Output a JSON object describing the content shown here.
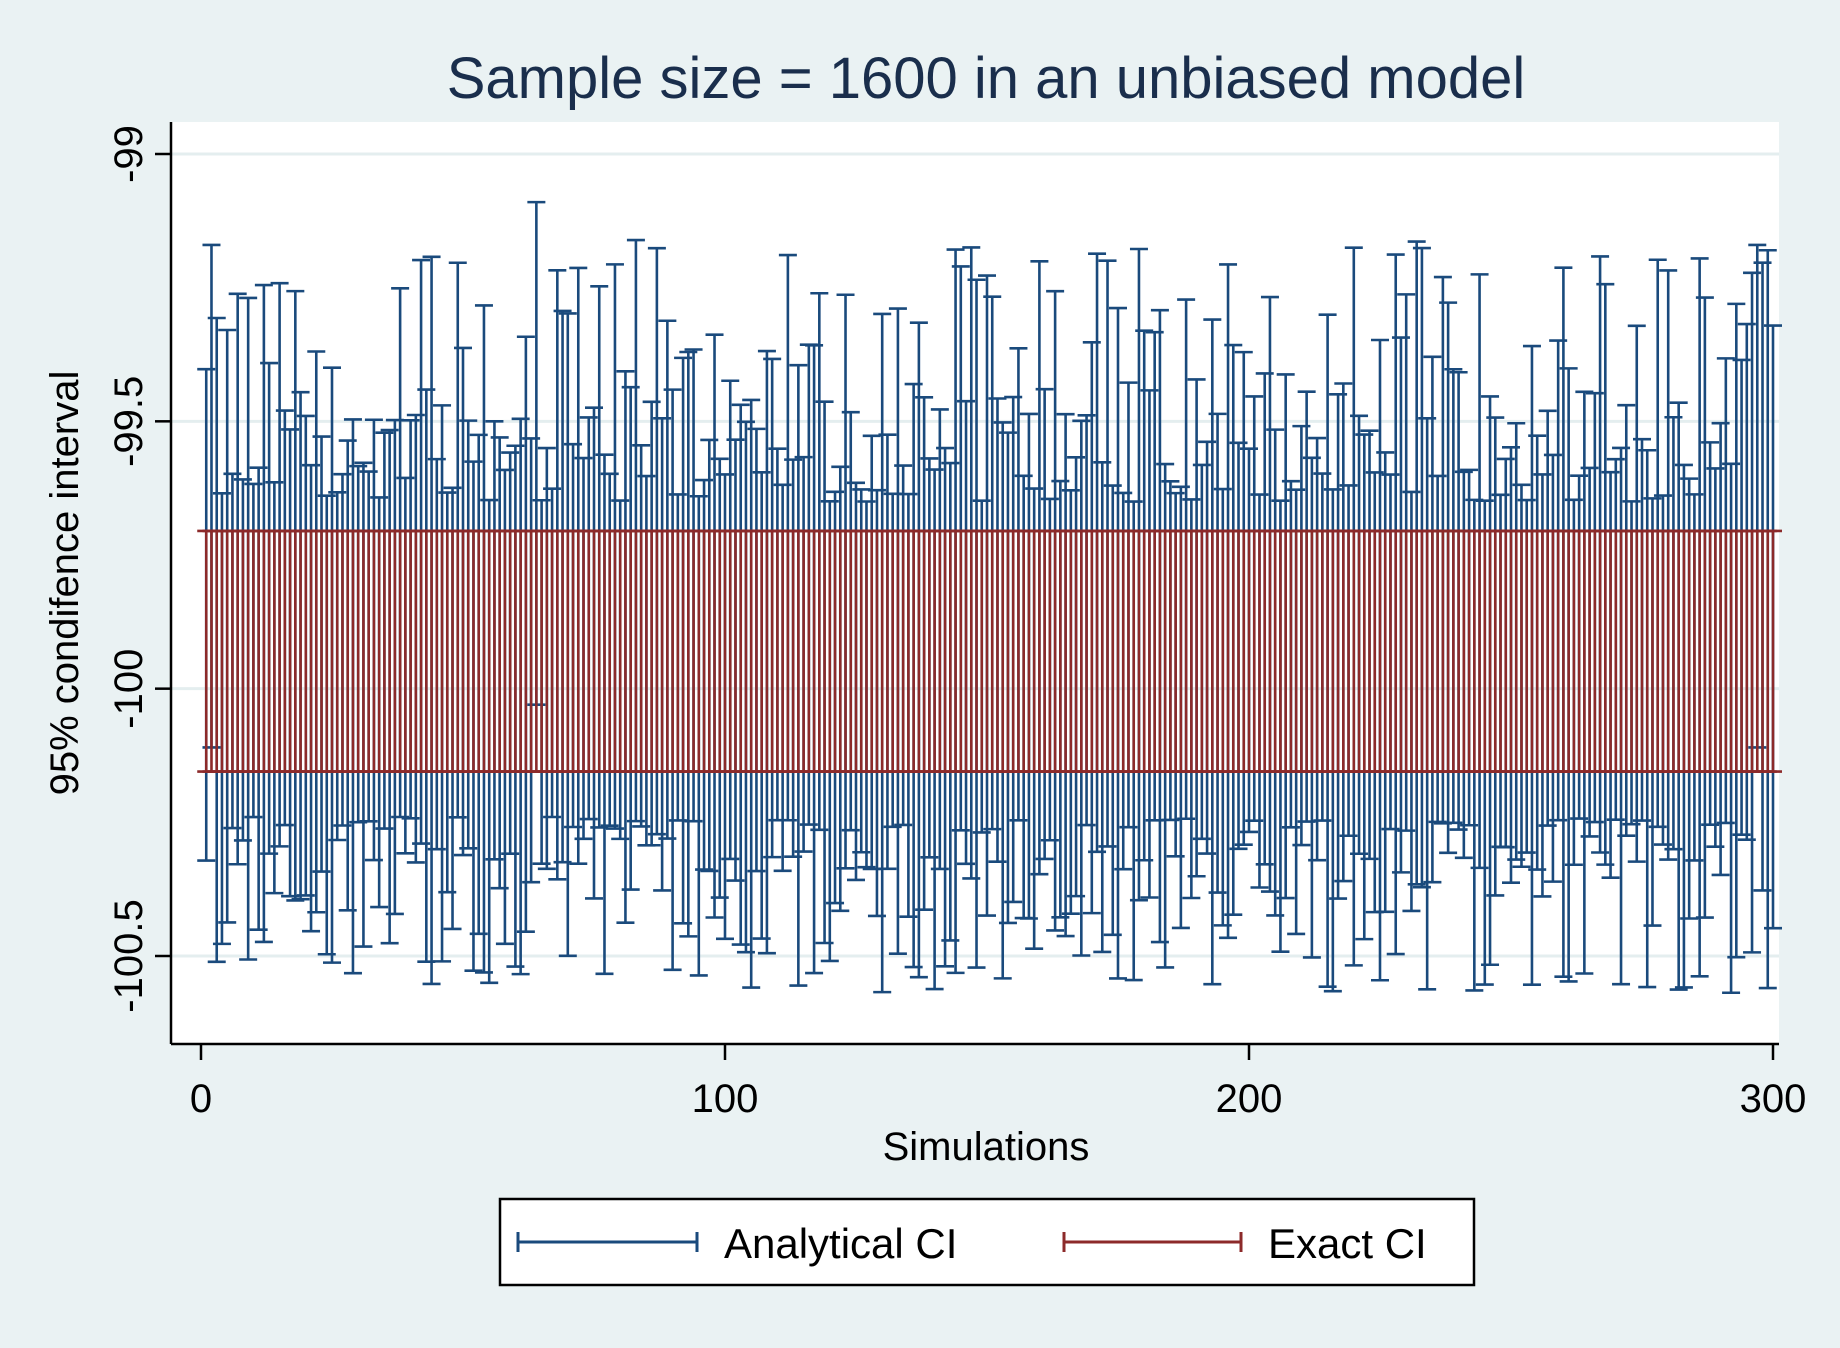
{
  "chart_data": {
    "type": "errorbar",
    "title": "Sample size = 1600 in an unbiased model",
    "xlabel": "Simulations",
    "ylabel": "95% condifence interval",
    "xlim": [
      -3,
      301
    ],
    "ylim": [
      -100.65,
      -98.97
    ],
    "xticks": [
      0,
      100,
      200,
      300
    ],
    "xtick_labels": [
      "0",
      "100",
      "200",
      "300"
    ],
    "yticks": [
      -99,
      -99.5,
      -100,
      -100.5
    ],
    "ytick_labels": [
      "-99",
      "-99.5",
      "-100",
      "-100.5"
    ],
    "grid": true,
    "legend_position": "bottom",
    "colors": {
      "background": "#eaf2f3",
      "plot_background": "#ffffff",
      "analytical": "#1a4a7c",
      "exact": "#8c2a2a",
      "grid": "#e4eeef"
    },
    "series": [
      {
        "name": "Analytical CI",
        "x_start": 1,
        "x_end": 300,
        "lower_range": [
          -100.57,
          -100.24
        ],
        "upper_range": [
          -99.16,
          -99.65
        ],
        "notable": [
          {
            "x": 64,
            "upper": -99.09,
            "lower": -100.03
          },
          {
            "x": 2,
            "upper": -99.17,
            "lower": -100.11
          },
          {
            "x": 297,
            "upper": -99.17,
            "lower": -100.11
          },
          {
            "x": 299,
            "upper": -99.18,
            "lower": -100.56
          }
        ]
      },
      {
        "name": "Exact CI",
        "x_start": 1,
        "x_end": 300,
        "lower": -100.155,
        "upper": -99.705
      }
    ]
  }
}
